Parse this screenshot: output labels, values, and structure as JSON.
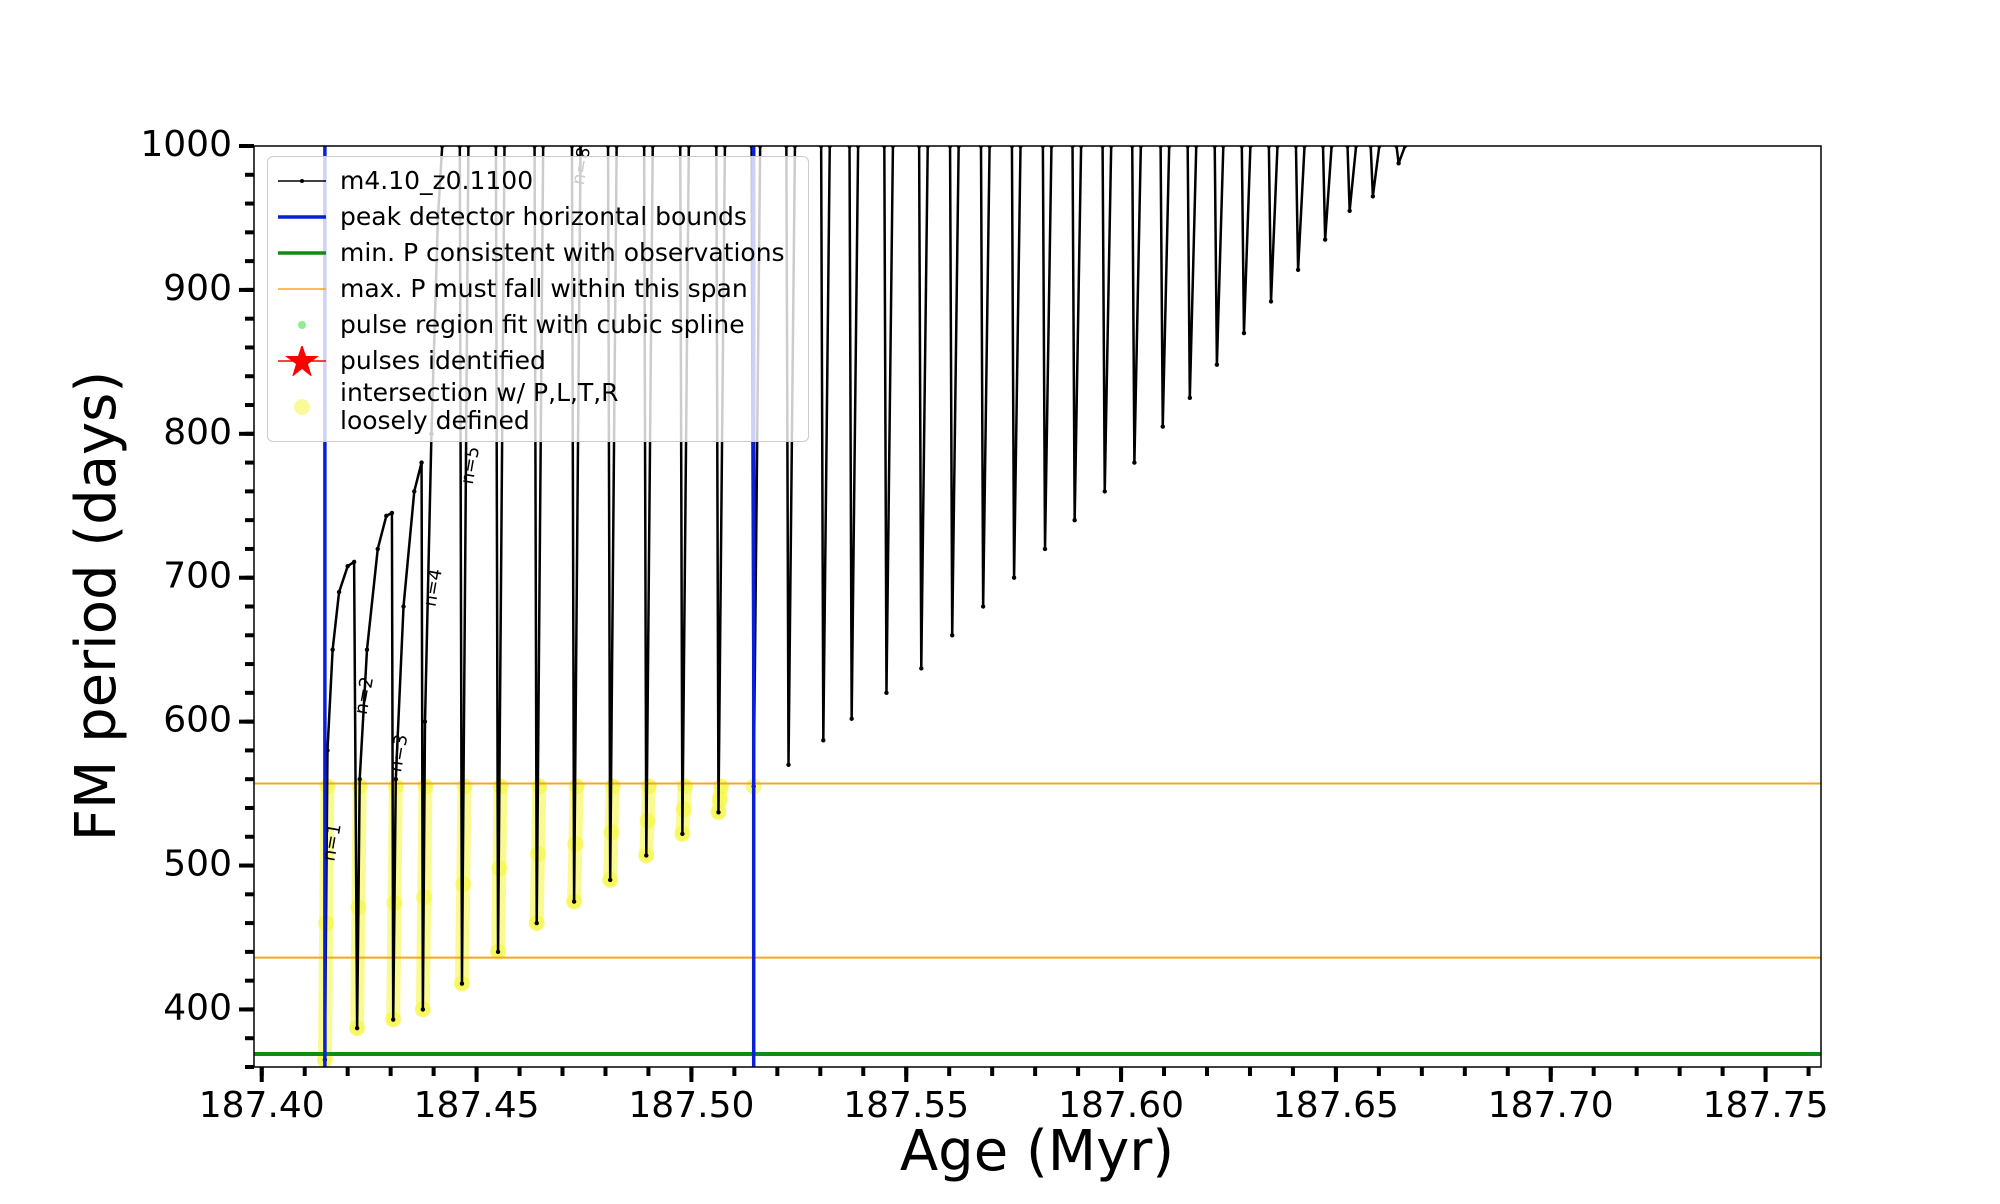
{
  "chart_data": {
    "type": "line",
    "xlabel": "Age (Myr)",
    "ylabel": "FM period (days)",
    "xlim": [
      187.3982,
      187.7629
    ],
    "ylim": [
      360,
      1000
    ],
    "xticks": [
      {
        "value": 187.4,
        "label": "187.40"
      },
      {
        "value": 187.45,
        "label": "187.45"
      },
      {
        "value": 187.5,
        "label": "187.50"
      },
      {
        "value": 187.55,
        "label": "187.55"
      },
      {
        "value": 187.6,
        "label": "187.60"
      },
      {
        "value": 187.65,
        "label": "187.65"
      },
      {
        "value": 187.7,
        "label": "187.70"
      },
      {
        "value": 187.75,
        "label": "187.75"
      }
    ],
    "yticks": [
      400,
      500,
      600,
      700,
      800,
      900,
      1000
    ],
    "xminorticks": [
      187.4,
      187.41,
      187.42,
      187.43,
      187.44,
      187.45,
      187.46,
      187.47,
      187.48,
      187.49,
      187.5,
      187.51,
      187.52,
      187.53,
      187.54,
      187.55,
      187.56,
      187.57,
      187.58,
      187.59,
      187.6,
      187.61,
      187.62,
      187.63,
      187.64,
      187.65,
      187.66,
      187.67,
      187.68,
      187.69,
      187.7,
      187.71,
      187.72,
      187.73,
      187.74,
      187.75,
      187.76
    ],
    "yminorticks": [
      360,
      380,
      400,
      420,
      440,
      460,
      480,
      500,
      520,
      540,
      560,
      580,
      600,
      620,
      640,
      660,
      680,
      700,
      720,
      740,
      760,
      780,
      800,
      820,
      840,
      860,
      880,
      900,
      920,
      940,
      960,
      980,
      1000
    ],
    "series": [
      {
        "name": "m4.10_z0.1100",
        "color": "#000000",
        "marker": "line",
        "x": [
          187.4147,
          187.4153,
          187.4165,
          187.418,
          187.42,
          187.4215,
          187.4222,
          187.4228,
          187.4245,
          187.427,
          187.429,
          187.4303,
          187.4306,
          187.4312,
          187.433,
          187.4355,
          187.4372,
          187.4375,
          187.438,
          187.4395,
          187.441,
          187.442,
          null,
          187.4461,
          187.4466,
          187.4481,
          null,
          187.4545,
          187.455,
          187.4565,
          null,
          187.4635,
          187.464,
          187.4655,
          null,
          187.4722,
          187.4727,
          187.4742,
          null,
          187.4806,
          187.4811,
          187.4826,
          null,
          187.489,
          187.4895,
          187.491,
          null,
          187.4974,
          187.4979,
          187.4994,
          null,
          187.5058,
          187.5063,
          187.5078,
          null,
          187.514,
          187.5145,
          187.516,
          null,
          187.5221,
          187.5226,
          187.5241,
          null,
          187.5302,
          187.5307,
          187.5322,
          null,
          187.5368,
          187.5373,
          187.5388,
          null,
          187.5449,
          187.5454,
          187.5469,
          null,
          187.553,
          187.5535,
          187.555,
          null,
          187.5602,
          187.5607,
          187.5622,
          null,
          187.5674,
          187.5679,
          187.5694,
          null,
          187.5746,
          187.5751,
          187.5766,
          null,
          187.5818,
          187.5823,
          187.5838,
          null,
          187.5887,
          187.5892,
          187.5907,
          null,
          187.5957,
          187.5962,
          187.5977,
          null,
          187.6026,
          187.6031,
          187.6046,
          null,
          187.6092,
          187.6097,
          187.6112,
          null,
          187.6155,
          187.616,
          187.6175,
          null,
          187.6218,
          187.6223,
          187.6238,
          null,
          187.6281,
          187.6286,
          187.6301,
          null,
          187.6344,
          187.6349,
          187.6364,
          null,
          187.6407,
          187.6412,
          187.6427,
          null,
          187.647,
          187.6475,
          187.649,
          null,
          187.6527,
          187.6532,
          187.6547,
          null,
          187.6581,
          187.6586,
          187.6601,
          null,
          187.6641,
          187.6646,
          187.6661
        ],
        "y": [
          365,
          580,
          650,
          690,
          708,
          711,
          387,
          560,
          650,
          720,
          743,
          745,
          393,
          560,
          680,
          760,
          780,
          400,
          600,
          800,
          950,
          1000,
          null,
          1000,
          418,
          1000,
          null,
          1000,
          440,
          1000,
          null,
          1000,
          460,
          1000,
          null,
          1000,
          475,
          1000,
          null,
          1000,
          490,
          1000,
          null,
          1000,
          507,
          1000,
          null,
          1000,
          522,
          1000,
          null,
          1000,
          537,
          1000,
          null,
          1000,
          555,
          1000,
          null,
          1000,
          570,
          1000,
          null,
          1000,
          587,
          1000,
          null,
          1000,
          602,
          1000,
          null,
          1000,
          620,
          1000,
          null,
          1000,
          637,
          1000,
          null,
          1000,
          660,
          1000,
          null,
          1000,
          680,
          1000,
          null,
          1000,
          700,
          1000,
          null,
          1000,
          720,
          1000,
          null,
          1000,
          740,
          1000,
          null,
          1000,
          760,
          1000,
          null,
          1000,
          780,
          1000,
          null,
          1000,
          805,
          1000,
          null,
          1000,
          825,
          1000,
          null,
          1000,
          848,
          1000,
          null,
          1000,
          870,
          1000,
          null,
          1000,
          892,
          1000,
          null,
          1000,
          914,
          1000,
          null,
          1000,
          935,
          1000,
          null,
          1000,
          955,
          1000,
          null,
          1000,
          965,
          1000,
          null,
          1000,
          988,
          1000
        ]
      },
      {
        "name": "peak detector horizontal bounds",
        "color": "#0a1fd9",
        "marker": "vline",
        "x": [
          187.4147,
          187.5145
        ]
      },
      {
        "name": "min. P consistent with observations",
        "color": "#138a13",
        "marker": "hline",
        "y": [
          369
        ]
      },
      {
        "name": "max. P must fall within this span",
        "color": "#f5a623",
        "marker": "hline",
        "y": [
          557,
          436
        ]
      },
      {
        "name": "pulse region fit with cubic spline",
        "color": "#90ee90",
        "marker": "dot",
        "x": [],
        "y": []
      },
      {
        "name": "pulses identified",
        "color": "#ff0000",
        "marker": "star",
        "x": [],
        "y": []
      },
      {
        "name": "intersection w/ P,L,T,R\nloosely defined",
        "color": "#f5f53a",
        "marker": "circle",
        "x": [
          187.4147,
          187.415,
          187.4153,
          null,
          187.4222,
          187.4225,
          187.4228,
          null,
          187.4306,
          187.4309,
          187.4312,
          null,
          187.4375,
          187.4378,
          187.4381,
          null,
          187.4466,
          187.4469,
          187.4472,
          null,
          187.455,
          187.4553,
          187.4556,
          null,
          187.464,
          187.4643,
          187.4646,
          null,
          187.4727,
          187.473,
          187.4733,
          null,
          187.4811,
          187.4814,
          187.4817,
          null,
          187.4895,
          187.4898,
          187.4901,
          null,
          187.4979,
          187.4982,
          187.4985,
          null,
          187.5063,
          187.5066,
          187.5069,
          null,
          187.5145
        ],
        "y": [
          365,
          460,
          555,
          null,
          387,
          471,
          555,
          null,
          393,
          474,
          555,
          null,
          400,
          478,
          555,
          null,
          418,
          487,
          555,
          null,
          440,
          498,
          555,
          null,
          460,
          508,
          555,
          null,
          475,
          515,
          555,
          null,
          490,
          523,
          555,
          null,
          507,
          531,
          555,
          null,
          522,
          539,
          555,
          null,
          537,
          546,
          555,
          null,
          555
        ]
      }
    ],
    "annotations": [
      {
        "text": "n=1",
        "x": 187.4165,
        "y": 516
      },
      {
        "text": "n=2",
        "x": 187.424,
        "y": 618
      },
      {
        "text": "n=3",
        "x": 187.432,
        "y": 578
      },
      {
        "text": "n=4",
        "x": 187.44,
        "y": 693
      },
      {
        "text": "n=5",
        "x": 187.4487,
        "y": 778
      },
      {
        "text": "n=8",
        "x": 187.4745,
        "y": 986
      }
    ]
  }
}
